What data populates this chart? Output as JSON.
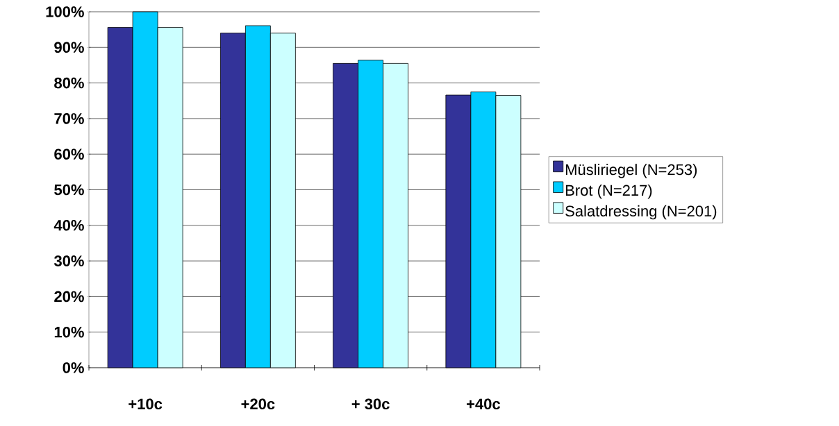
{
  "chart_data": {
    "type": "bar",
    "categories": [
      "+10c",
      "+20c",
      "+ 30c",
      "+40c"
    ],
    "series": [
      {
        "name": "Müsliriegel (N=253)",
        "color": "#333399",
        "values": [
          95.6,
          94.0,
          85.5,
          76.6
        ]
      },
      {
        "name": "Brot (N=217)",
        "color": "#00ccff",
        "values": [
          100,
          96.1,
          86.4,
          77.5
        ]
      },
      {
        "name": "Salatdressing (N=201)",
        "color": "#ccffff",
        "values": [
          95.6,
          94.0,
          85.5,
          76.5
        ]
      }
    ],
    "ylim": [
      0,
      100
    ],
    "yticks": [
      {
        "value": 0,
        "label": "0%"
      },
      {
        "value": 10,
        "label": "10%"
      },
      {
        "value": 20,
        "label": "20%"
      },
      {
        "value": 30,
        "label": "30%"
      },
      {
        "value": 40,
        "label": "40%"
      },
      {
        "value": 50,
        "label": "50%"
      },
      {
        "value": 60,
        "label": "60%"
      },
      {
        "value": 70,
        "label": "70%"
      },
      {
        "value": 80,
        "label": "80%"
      },
      {
        "value": 90,
        "label": "90%"
      },
      {
        "value": 100,
        "label": "100%"
      }
    ],
    "grid": "y",
    "legend": "right"
  }
}
